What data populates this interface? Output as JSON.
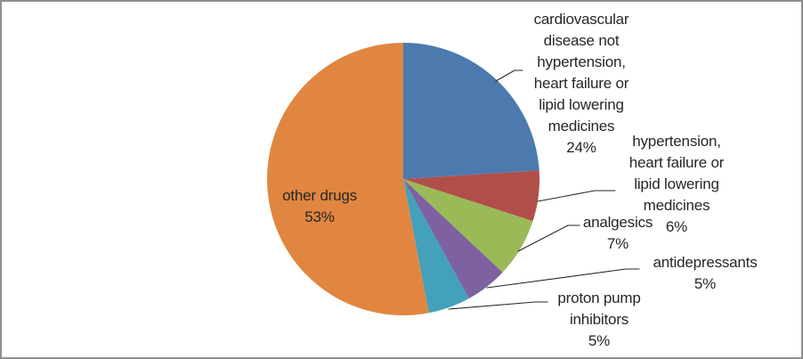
{
  "chart": {
    "background": "#FFFFFF",
    "border_color": "#8E8E8E",
    "text_color": "#262626",
    "leader_line_color": "#262626"
  },
  "chart_data": {
    "type": "pie",
    "title": "",
    "unit": "percent",
    "categories": [
      "cardiovascular disease not hypertension, heart failure or lipid lowering medicines",
      "hypertension, heart failure or lipid lowering medicines",
      "analgesics",
      "antidepressants",
      "proton pump inhibitors",
      "other drugs"
    ],
    "values": [
      24,
      6,
      7,
      5,
      5,
      53
    ],
    "percent_labels": [
      "24%",
      "6%",
      "7%",
      "5%",
      "5%",
      "53%"
    ],
    "colors": [
      "#4C79AE",
      "#B04F4A",
      "#9ABA58",
      "#7E61A1",
      "#43A1BB",
      "#E08640"
    ],
    "slice_keys": [
      "cardiovascular-disease-not-hypertension",
      "hypertension-heart-failure-lipid-lowering",
      "analgesics",
      "antidepressants",
      "proton-pump-inhibitors",
      "other-drugs"
    ],
    "start_angle_deg": 0,
    "direction": "clockwise",
    "legend_position": "none",
    "label_placement": "category name and percent outside with leader lines; largest slice labeled inside"
  },
  "labels": {
    "cardiovascular": "cardiovascular\ndisease not\nhypertension,\nheart failure or\nlipid lowering\nmedicines\n24%",
    "hypertension": "hypertension,\nheart failure or\nlipid lowering\nmedicines\n6%",
    "analgesics": "analgesics\n7%",
    "antidepressants": "antidepressants\n5%",
    "proton_pump": "proton pump\ninhibitors\n5%",
    "other_drugs": "other drugs\n53%"
  }
}
